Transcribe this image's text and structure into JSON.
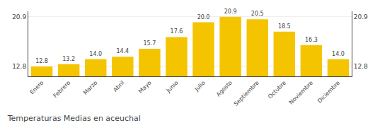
{
  "chart_data": {
    "type": "bar",
    "title": "Temperaturas Medias en aceuchal",
    "categories": [
      "Enero",
      "Febrero",
      "Marzo",
      "Abril",
      "Mayo",
      "Junio",
      "Julio",
      "Agosto",
      "Septiembre",
      "Octubre",
      "Noviembre",
      "Diciembre"
    ],
    "values": [
      12.8,
      13.2,
      14.0,
      14.4,
      15.7,
      17.6,
      20.0,
      20.9,
      20.5,
      18.5,
      16.3,
      14.0
    ],
    "value_labels": [
      "12.8",
      "13.2",
      "14.0",
      "14.4",
      "15.7",
      "17.6",
      "20.0",
      "20.9",
      "20.5",
      "18.5",
      "16.3",
      "14.0"
    ],
    "data_labels": true,
    "color": "#F5C400",
    "ylim": [
      11.2,
      21.8
    ],
    "yticks": [
      12.8,
      20.9
    ],
    "y2lim": [
      11.2,
      21.8
    ],
    "y2ticks": [
      12.8,
      20.9
    ],
    "grid": true
  }
}
